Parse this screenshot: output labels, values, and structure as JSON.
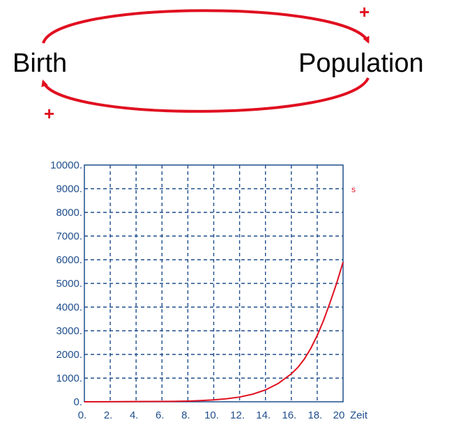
{
  "diagram": {
    "nodes": {
      "birth": "Birth",
      "population": "Population"
    },
    "signs": {
      "top": "+",
      "bottom": "+"
    },
    "colors": {
      "arrow": "#e01020",
      "text": "#000000"
    }
  },
  "chart_data": {
    "type": "line",
    "xlabel": "Zeit",
    "ylabel": "",
    "xlim": [
      0,
      20
    ],
    "ylim": [
      0,
      10000
    ],
    "x_ticks": [
      "0.",
      "2.",
      "4.",
      "6.",
      "8.",
      "10.",
      "12.",
      "14.",
      "16.",
      "18.",
      "20"
    ],
    "y_ticks": [
      "0.",
      "1000.",
      "2000.",
      "3000.",
      "4000.",
      "5000.",
      "6000.",
      "7000.",
      "8000.",
      "9000.",
      "10000."
    ],
    "grid": true,
    "series": [
      {
        "name": "s",
        "color": "#e01020",
        "x": [
          0,
          2,
          4,
          6,
          7,
          8,
          9,
          10,
          11,
          12,
          13,
          14,
          15,
          16,
          16.5,
          17,
          17.5,
          18,
          18.5,
          19,
          19.5,
          20
        ],
        "y": [
          0,
          5,
          10,
          15,
          20,
          30,
          50,
          80,
          130,
          200,
          320,
          500,
          780,
          1180,
          1450,
          1800,
          2250,
          2800,
          3450,
          4200,
          5000,
          5900
        ]
      }
    ],
    "colors": {
      "axis": "#1f4e8c",
      "grid": "#1f4e8c",
      "tick_text": "#1f4e8c"
    }
  }
}
